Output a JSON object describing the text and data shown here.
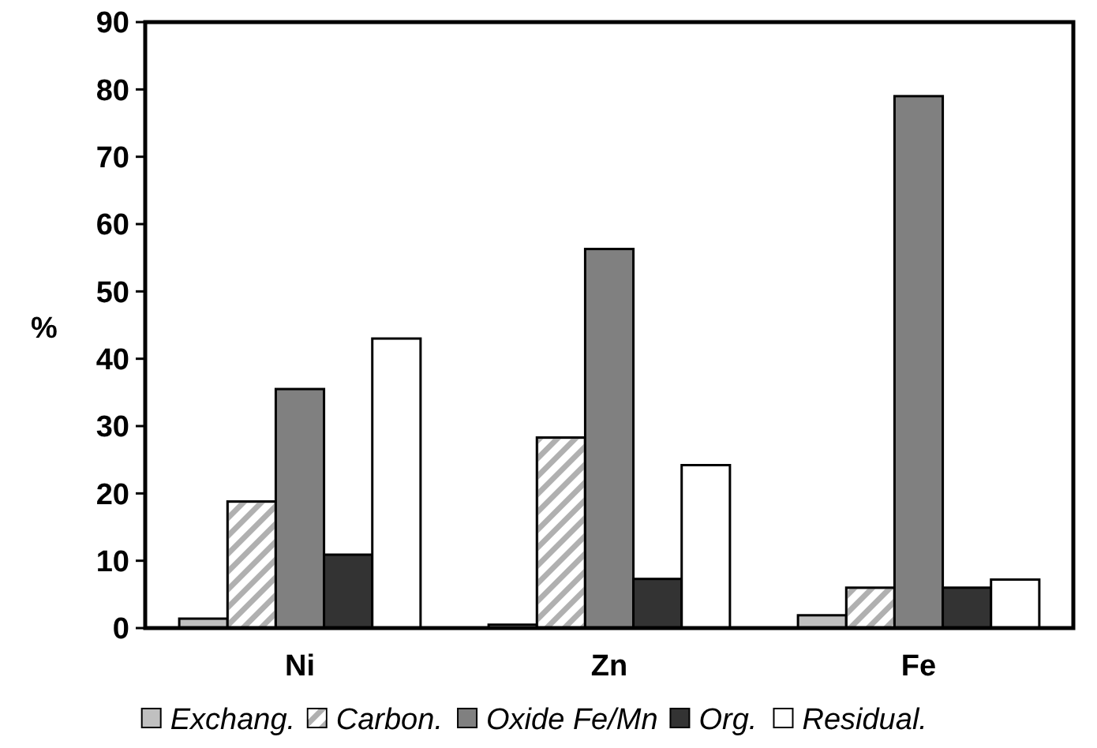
{
  "chart_data": {
    "type": "bar",
    "ylabel": "%",
    "categories": [
      "Ni",
      "Zn",
      "Fe"
    ],
    "series": [
      {
        "name": "Exchang.",
        "color": "#c0c0c0",
        "values": [
          1.4,
          0.5,
          1.9
        ]
      },
      {
        "name": "Carbon.",
        "color": "#b0b0b0",
        "values": [
          18.8,
          28.3,
          6.0
        ]
      },
      {
        "name": "Oxide Fe/Mn",
        "color": "#808080",
        "values": [
          35.5,
          56.3,
          79
        ]
      },
      {
        "name": "Org.",
        "color": "#333333",
        "values": [
          10.9,
          7.3,
          6.0
        ]
      },
      {
        "name": "Residual.",
        "color": "#ffffff",
        "values": [
          43,
          24.2,
          7.2
        ]
      }
    ],
    "ylim": [
      0,
      90
    ],
    "yticks": [
      0,
      10,
      20,
      30,
      40,
      50,
      60,
      70,
      80,
      90
    ],
    "grid": false,
    "legend": "bottom"
  }
}
